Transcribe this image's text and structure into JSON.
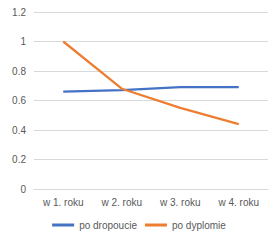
{
  "chart_data": {
    "type": "line",
    "categories": [
      "w 1. roku",
      "w 2. roku",
      "w 3. roku",
      "w 4. roku"
    ],
    "series": [
      {
        "name": "po dropoucie",
        "color": "#4472c4",
        "values": [
          0.66,
          0.67,
          0.69,
          0.69
        ]
      },
      {
        "name": "po dyplomie",
        "color": "#ed7d31",
        "values": [
          1.0,
          0.68,
          0.55,
          0.44
        ]
      }
    ],
    "ylim": [
      0,
      1.2
    ],
    "yticks": [
      0,
      0.2,
      0.4,
      0.6,
      0.8,
      1,
      1.2
    ],
    "grid": true,
    "legend": "bottom"
  }
}
